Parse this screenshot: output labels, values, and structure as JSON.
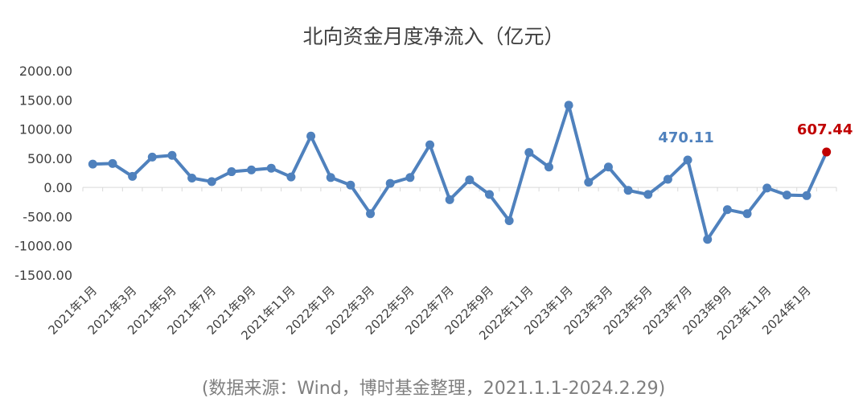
{
  "chart_data": {
    "type": "line",
    "title": "北向资金月度净流入（亿元）",
    "source": "(数据来源：Wind，博时基金整理，2021.1.1-2024.2.29)",
    "ylim": [
      -1500,
      2000
    ],
    "yticks": [
      "2000.00",
      "1500.00",
      "1000.00",
      "500.00",
      "0.00",
      "-500.00",
      "-1000.00",
      "-1500.00"
    ],
    "ytick_values": [
      2000,
      1500,
      1000,
      500,
      0,
      -500,
      -1000,
      -1500
    ],
    "grid": false,
    "x": [
      "2021年1月",
      "2021年2月",
      "2021年3月",
      "2021年4月",
      "2021年5月",
      "2021年6月",
      "2021年7月",
      "2021年8月",
      "2021年9月",
      "2021年10月",
      "2021年11月",
      "2021年12月",
      "2022年1月",
      "2022年2月",
      "2022年3月",
      "2022年4月",
      "2022年5月",
      "2022年6月",
      "2022年7月",
      "2022年8月",
      "2022年9月",
      "2022年10月",
      "2022年11月",
      "2022年12月",
      "2023年1月",
      "2023年2月",
      "2023年3月",
      "2023年4月",
      "2023年5月",
      "2023年6月",
      "2023年7月",
      "2023年8月",
      "2023年9月",
      "2023年10月",
      "2023年11月",
      "2023年12月",
      "2024年1月",
      "2024年2月"
    ],
    "xtick_labels": [
      "2021年1月",
      "2021年3月",
      "2021年5月",
      "2021年7月",
      "2021年9月",
      "2021年11月",
      "2022年1月",
      "2022年3月",
      "2022年5月",
      "2022年7月",
      "2022年9月",
      "2022年11月",
      "2023年1月",
      "2023年3月",
      "2023年5月",
      "2023年7月",
      "2023年9月",
      "2023年11月",
      "2024年1月"
    ],
    "series": [
      {
        "values": [
          400,
          410,
          190,
          520,
          550,
          160,
          100,
          270,
          300,
          330,
          180,
          880,
          170,
          40,
          -450,
          70,
          170,
          730,
          -210,
          130,
          -120,
          -570,
          600,
          350,
          1410,
          90,
          350,
          -50,
          -120,
          140,
          470.11,
          -890,
          -380,
          -450,
          -10,
          -130,
          -140,
          607.44
        ],
        "color": "#4f81bd"
      }
    ],
    "annotations": [
      {
        "index": 30,
        "text": "470.11",
        "color": "#4f81bd"
      },
      {
        "index": 37,
        "text": "607.44",
        "color": "#c00000"
      }
    ]
  }
}
